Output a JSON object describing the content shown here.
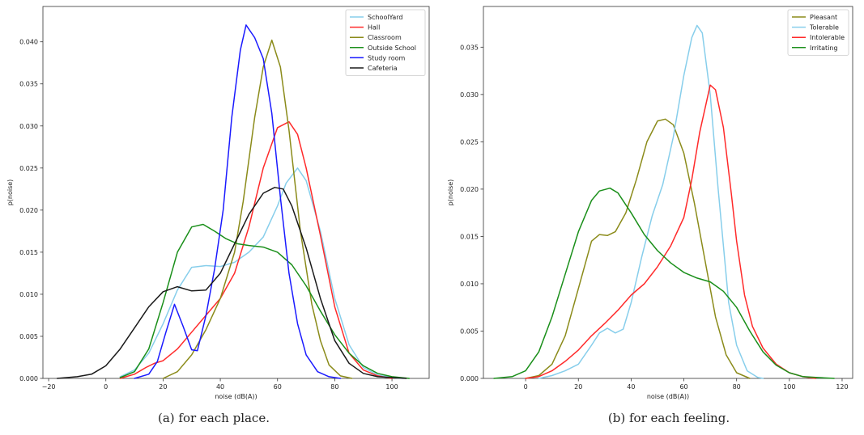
{
  "chart_data": [
    {
      "type": "line",
      "caption": "(a) for each place.",
      "xlabel": "noise (dB(A))",
      "ylabel": "p(noise)",
      "xlim": [
        -22,
        113
      ],
      "ylim": [
        0,
        0.0442
      ],
      "xticks": [
        -20,
        0,
        20,
        40,
        60,
        80,
        100
      ],
      "yticks": [
        0.0,
        0.005,
        0.01,
        0.015,
        0.02,
        0.025,
        0.03,
        0.035,
        0.04
      ],
      "ytick_labels": [
        "0.000",
        "0.005",
        "0.010",
        "0.015",
        "0.020",
        "0.025",
        "0.030",
        "0.035",
        "0.040"
      ],
      "grid": false,
      "legend_position": "top-right",
      "series": [
        {
          "name": "SchoolYard",
          "color": "#87ceeb",
          "x": [
            5,
            10,
            15,
            20,
            25,
            30,
            35,
            40,
            45,
            50,
            55,
            60,
            63,
            67,
            70,
            75,
            80,
            85,
            90,
            95,
            100,
            104
          ],
          "y": [
            0.0002,
            0.001,
            0.003,
            0.0065,
            0.0105,
            0.0132,
            0.0134,
            0.0133,
            0.0138,
            0.015,
            0.0168,
            0.0205,
            0.0232,
            0.025,
            0.0235,
            0.0175,
            0.0095,
            0.004,
            0.0013,
            0.0004,
            0.0001,
            0
          ]
        },
        {
          "name": "Hall",
          "color": "#ff2a2a",
          "x": [
            5,
            10,
            14,
            17,
            20,
            25,
            30,
            35,
            40,
            45,
            50,
            55,
            60,
            64,
            67,
            70,
            75,
            80,
            85,
            90,
            95,
            100
          ],
          "y": [
            0,
            0.0005,
            0.0013,
            0.0018,
            0.0021,
            0.0035,
            0.0055,
            0.0075,
            0.0095,
            0.0125,
            0.018,
            0.025,
            0.0298,
            0.0305,
            0.029,
            0.025,
            0.017,
            0.0085,
            0.003,
            0.001,
            0.0003,
            0
          ]
        },
        {
          "name": "Classroom",
          "color": "#8b8b1a",
          "x": [
            20,
            25,
            30,
            35,
            40,
            45,
            48,
            52,
            55,
            58,
            61,
            64,
            68,
            72,
            75,
            78,
            82,
            86
          ],
          "y": [
            0,
            0.0008,
            0.0028,
            0.0058,
            0.0095,
            0.015,
            0.021,
            0.031,
            0.037,
            0.0402,
            0.037,
            0.0295,
            0.0175,
            0.0088,
            0.0045,
            0.0016,
            0.0003,
            0
          ]
        },
        {
          "name": "Outside School",
          "color": "#1a8f1a",
          "x": [
            5,
            10,
            15,
            20,
            25,
            30,
            34,
            38,
            42,
            46,
            50,
            55,
            60,
            65,
            70,
            75,
            80,
            85,
            90,
            95,
            100,
            106
          ],
          "y": [
            0.0001,
            0.0008,
            0.0035,
            0.009,
            0.015,
            0.018,
            0.0183,
            0.0175,
            0.0166,
            0.016,
            0.0158,
            0.0156,
            0.015,
            0.0135,
            0.011,
            0.008,
            0.0052,
            0.003,
            0.0015,
            0.0006,
            0.0002,
            0
          ]
        },
        {
          "name": "Study room",
          "color": "#1a1aff",
          "x": [
            10,
            15,
            18,
            21,
            24,
            27,
            30,
            32,
            35,
            38,
            41,
            44,
            47,
            49,
            52,
            55,
            58,
            61,
            64,
            67,
            70,
            74,
            78,
            82
          ],
          "y": [
            0,
            0.0005,
            0.002,
            0.0055,
            0.0088,
            0.0062,
            0.0034,
            0.0033,
            0.0075,
            0.013,
            0.02,
            0.031,
            0.039,
            0.042,
            0.0405,
            0.038,
            0.0315,
            0.0215,
            0.0125,
            0.0065,
            0.0028,
            0.0008,
            0.0002,
            0
          ]
        },
        {
          "name": "Cafeteria",
          "color": "#1a1a1a",
          "x": [
            -17,
            -10,
            -5,
            0,
            5,
            10,
            15,
            20,
            25,
            30,
            35,
            40,
            45,
            50,
            55,
            59,
            62,
            65,
            70,
            75,
            80,
            85,
            90,
            95,
            100,
            105
          ],
          "y": [
            0,
            0.0002,
            0.0005,
            0.0015,
            0.0035,
            0.006,
            0.0085,
            0.0103,
            0.0109,
            0.0104,
            0.0105,
            0.0125,
            0.016,
            0.0195,
            0.022,
            0.0227,
            0.0225,
            0.0205,
            0.0155,
            0.0095,
            0.0045,
            0.0018,
            0.0006,
            0.0002,
            0.0001,
            0
          ]
        }
      ]
    },
    {
      "type": "line",
      "caption": "(b) for each feeling.",
      "xlabel": "noise (dB(A))",
      "ylabel": "p(noise)",
      "xlim": [
        -16,
        124
      ],
      "ylim": [
        0,
        0.0393
      ],
      "xticks": [
        0,
        20,
        40,
        60,
        80,
        100,
        120
      ],
      "yticks": [
        0.0,
        0.005,
        0.01,
        0.015,
        0.02,
        0.025,
        0.03,
        0.035
      ],
      "ytick_labels": [
        "0.000",
        "0.005",
        "0.010",
        "0.015",
        "0.020",
        "0.025",
        "0.030",
        "0.035"
      ],
      "grid": false,
      "legend_position": "top-right",
      "series": [
        {
          "name": "Pleasant",
          "color": "#8b8b1a",
          "x": [
            0,
            5,
            10,
            15,
            20,
            25,
            28,
            31,
            34,
            38,
            42,
            46,
            50,
            53,
            56,
            60,
            64,
            68,
            72,
            76,
            80,
            85
          ],
          "y": [
            0,
            0.0003,
            0.0015,
            0.0045,
            0.0095,
            0.0145,
            0.0152,
            0.0151,
            0.0155,
            0.0175,
            0.021,
            0.025,
            0.0272,
            0.0274,
            0.0268,
            0.0238,
            0.0185,
            0.0125,
            0.0065,
            0.0025,
            0.0006,
            0
          ]
        },
        {
          "name": "Tolerable",
          "color": "#87ceeb",
          "x": [
            5,
            10,
            15,
            20,
            25,
            28,
            31,
            34,
            37,
            40,
            44,
            48,
            52,
            56,
            60,
            63,
            65,
            67,
            70,
            73,
            77,
            80,
            84,
            88,
            90
          ],
          "y": [
            0,
            0.0003,
            0.0008,
            0.0015,
            0.0035,
            0.0048,
            0.0053,
            0.0048,
            0.0052,
            0.008,
            0.0128,
            0.0172,
            0.0205,
            0.0255,
            0.032,
            0.036,
            0.0373,
            0.0365,
            0.03,
            0.02,
            0.008,
            0.0035,
            0.0008,
            0.0001,
            0
          ]
        },
        {
          "name": "Intolerable",
          "color": "#ff2a2a",
          "x": [
            0,
            5,
            10,
            15,
            20,
            25,
            30,
            35,
            40,
            45,
            50,
            55,
            60,
            63,
            66,
            70,
            72,
            75,
            78,
            80,
            83,
            86,
            90,
            95,
            100,
            105,
            110
          ],
          "y": [
            0,
            0.0002,
            0.0008,
            0.0018,
            0.003,
            0.0045,
            0.0058,
            0.0072,
            0.0088,
            0.01,
            0.0118,
            0.014,
            0.017,
            0.021,
            0.026,
            0.031,
            0.0305,
            0.0265,
            0.0195,
            0.0145,
            0.0088,
            0.0055,
            0.0032,
            0.0015,
            0.0006,
            0.0002,
            0
          ]
        },
        {
          "name": "Irritating",
          "color": "#1a8f1a",
          "x": [
            -12,
            -5,
            0,
            5,
            10,
            15,
            20,
            25,
            28,
            32,
            35,
            40,
            45,
            50,
            55,
            60,
            65,
            70,
            75,
            80,
            85,
            90,
            95,
            100,
            105,
            110,
            117
          ],
          "y": [
            0,
            0.0002,
            0.0008,
            0.0028,
            0.0065,
            0.011,
            0.0155,
            0.0188,
            0.0198,
            0.0201,
            0.0196,
            0.0175,
            0.0152,
            0.0135,
            0.0122,
            0.0112,
            0.0106,
            0.0102,
            0.0092,
            0.0075,
            0.005,
            0.0028,
            0.0014,
            0.0006,
            0.0002,
            0.0001,
            0
          ]
        }
      ]
    }
  ]
}
